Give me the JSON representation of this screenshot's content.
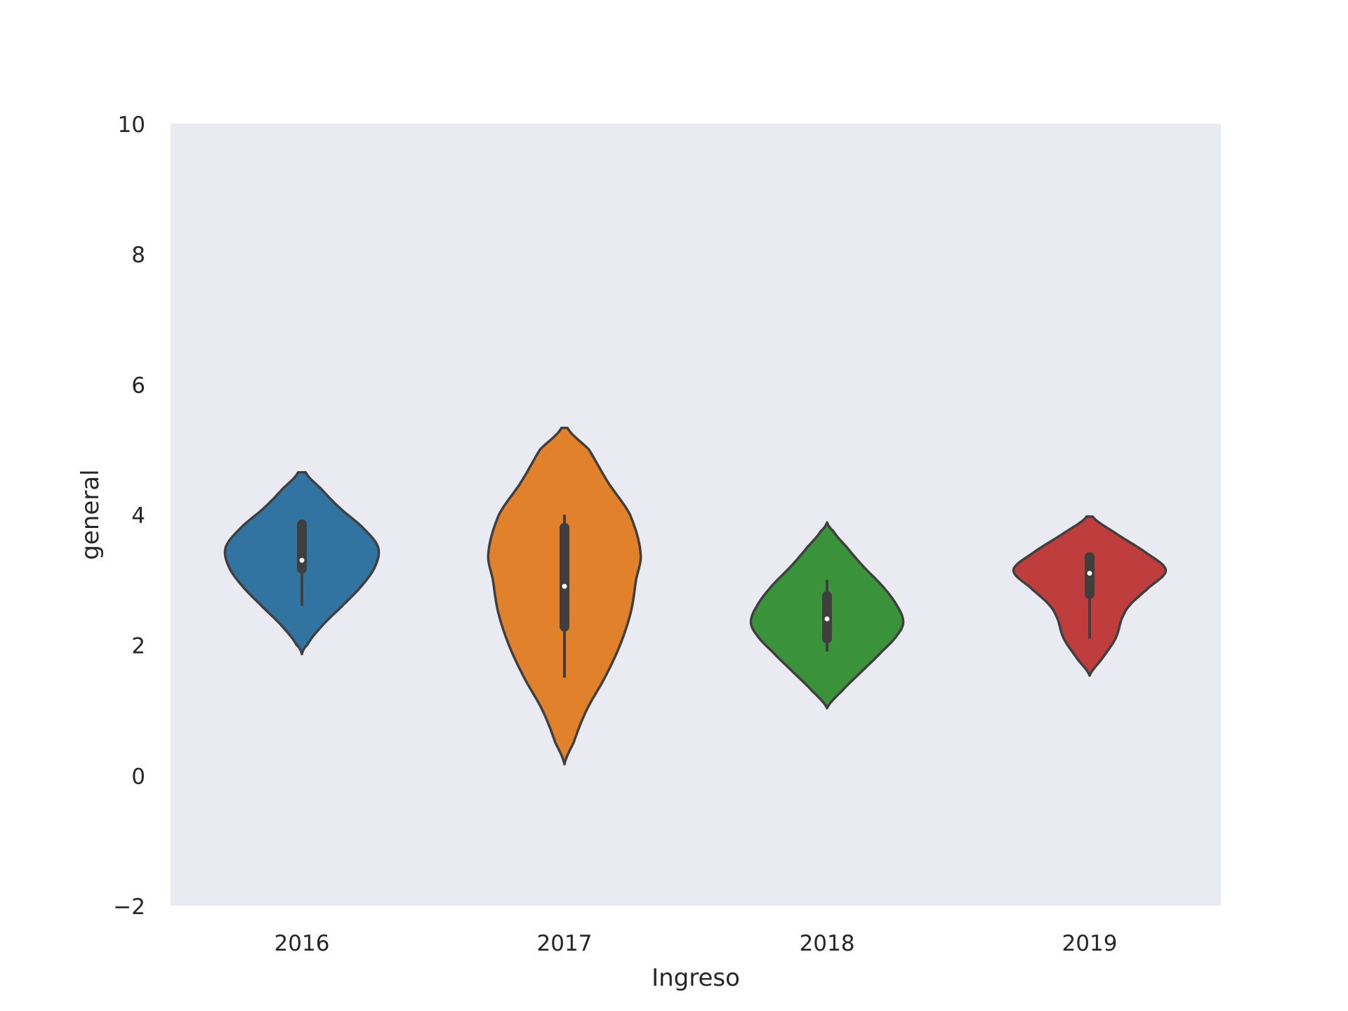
{
  "chart_data": {
    "type": "violin",
    "title": "",
    "xlabel": "Ingreso",
    "ylabel": "general",
    "categories": [
      "2016",
      "2017",
      "2018",
      "2019"
    ],
    "ylim": [
      -2,
      10
    ],
    "yticks": [
      -2,
      0,
      2,
      4,
      6,
      8,
      10
    ],
    "ytick_labels": [
      "−2",
      "0",
      "2",
      "4",
      "6",
      "8",
      "10"
    ],
    "grid": false,
    "plot_background": "#eaeaf2",
    "edge_color": "#3f3f3f",
    "colors": [
      "#3274a1",
      "#e1812c",
      "#3a923a",
      "#c03d3e"
    ],
    "series": [
      {
        "category": "2016",
        "median": 3.3,
        "q1": 3.17,
        "q3": 3.85,
        "whisker_low": 2.6,
        "whisker_high": 3.9,
        "density": [
          [
            1.86,
            0.0
          ],
          [
            2.0,
            0.07
          ],
          [
            2.3,
            0.27
          ],
          [
            2.6,
            0.53
          ],
          [
            2.9,
            0.78
          ],
          [
            3.2,
            0.96
          ],
          [
            3.5,
            1.0
          ],
          [
            3.8,
            0.8
          ],
          [
            4.1,
            0.5
          ],
          [
            4.4,
            0.25
          ],
          [
            4.65,
            0.05
          ]
        ]
      },
      {
        "category": "2017",
        "median": 2.9,
        "q1": 2.28,
        "q3": 3.8,
        "whisker_low": 1.5,
        "whisker_high": 4.0,
        "density": [
          [
            0.17,
            0.0
          ],
          [
            0.5,
            0.12
          ],
          [
            1.0,
            0.29
          ],
          [
            1.5,
            0.53
          ],
          [
            2.0,
            0.73
          ],
          [
            2.5,
            0.87
          ],
          [
            3.0,
            0.94
          ],
          [
            3.4,
            1.0
          ],
          [
            4.0,
            0.86
          ],
          [
            4.5,
            0.57
          ],
          [
            5.0,
            0.32
          ],
          [
            5.33,
            0.04
          ]
        ]
      },
      {
        "category": "2018",
        "median": 2.4,
        "q1": 2.1,
        "q3": 2.75,
        "whisker_low": 1.9,
        "whisker_high": 3.0,
        "density": [
          [
            1.03,
            0.0
          ],
          [
            1.3,
            0.2
          ],
          [
            1.6,
            0.46
          ],
          [
            1.9,
            0.72
          ],
          [
            2.15,
            0.92
          ],
          [
            2.35,
            1.0
          ],
          [
            2.6,
            0.92
          ],
          [
            2.9,
            0.73
          ],
          [
            3.2,
            0.48
          ],
          [
            3.5,
            0.26
          ],
          [
            3.75,
            0.08
          ],
          [
            3.88,
            0.0
          ]
        ]
      },
      {
        "category": "2019",
        "median": 3.1,
        "q1": 2.78,
        "q3": 3.35,
        "whisker_low": 2.1,
        "whisker_high": 3.4,
        "density": [
          [
            1.53,
            0.0
          ],
          [
            1.8,
            0.17
          ],
          [
            2.1,
            0.34
          ],
          [
            2.4,
            0.42
          ],
          [
            2.6,
            0.52
          ],
          [
            2.85,
            0.75
          ],
          [
            3.15,
            1.0
          ],
          [
            3.45,
            0.7
          ],
          [
            3.7,
            0.36
          ],
          [
            3.97,
            0.04
          ]
        ]
      }
    ]
  }
}
